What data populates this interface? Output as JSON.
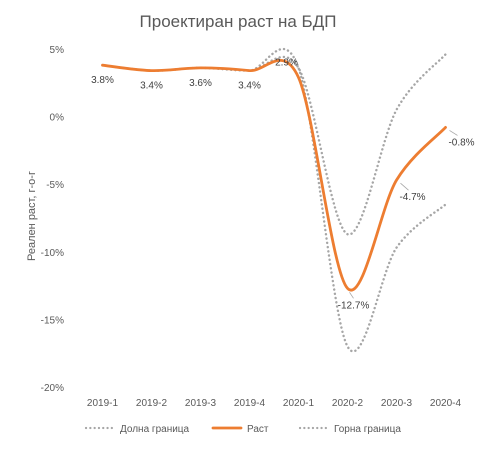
{
  "chart_data": {
    "type": "line",
    "title": "Проектиран раст на БДП",
    "xlabel": "",
    "ylabel": "Реален раст, г-о-г",
    "categories": [
      "2019-1",
      "2019-2",
      "2019-3",
      "2019-4",
      "2020-1",
      "2020-2",
      "2020-3",
      "2020-4"
    ],
    "ylim": [
      -20,
      5
    ],
    "yticks": [
      5,
      0,
      -5,
      -10,
      -15,
      -20
    ],
    "ytick_labels": [
      "5%",
      "0%",
      "-5%",
      "-10%",
      "-15%",
      "-20%"
    ],
    "grid": false,
    "legend_position": "bottom",
    "series": [
      {
        "name": "Долна граница",
        "style": "dotted",
        "color": "#a6a6a6",
        "values": [
          3.8,
          3.4,
          3.6,
          3.4,
          3.6,
          -17.0,
          -9.7,
          -6.5
        ]
      },
      {
        "name": "Раст",
        "style": "solid",
        "color": "#ed7d31",
        "values": [
          3.8,
          3.4,
          3.6,
          3.4,
          2.9,
          -12.7,
          -4.7,
          -0.8
        ],
        "data_labels": [
          "3.8%",
          "3.4%",
          "3.6%",
          "3.4%",
          "2.9%",
          "-12.7%",
          "-4.7%",
          "-0.8%"
        ]
      },
      {
        "name": "Горна граница",
        "style": "dotted",
        "color": "#a6a6a6",
        "values": [
          3.8,
          3.4,
          3.6,
          3.4,
          3.6,
          -8.7,
          0.5,
          4.6
        ]
      }
    ]
  }
}
